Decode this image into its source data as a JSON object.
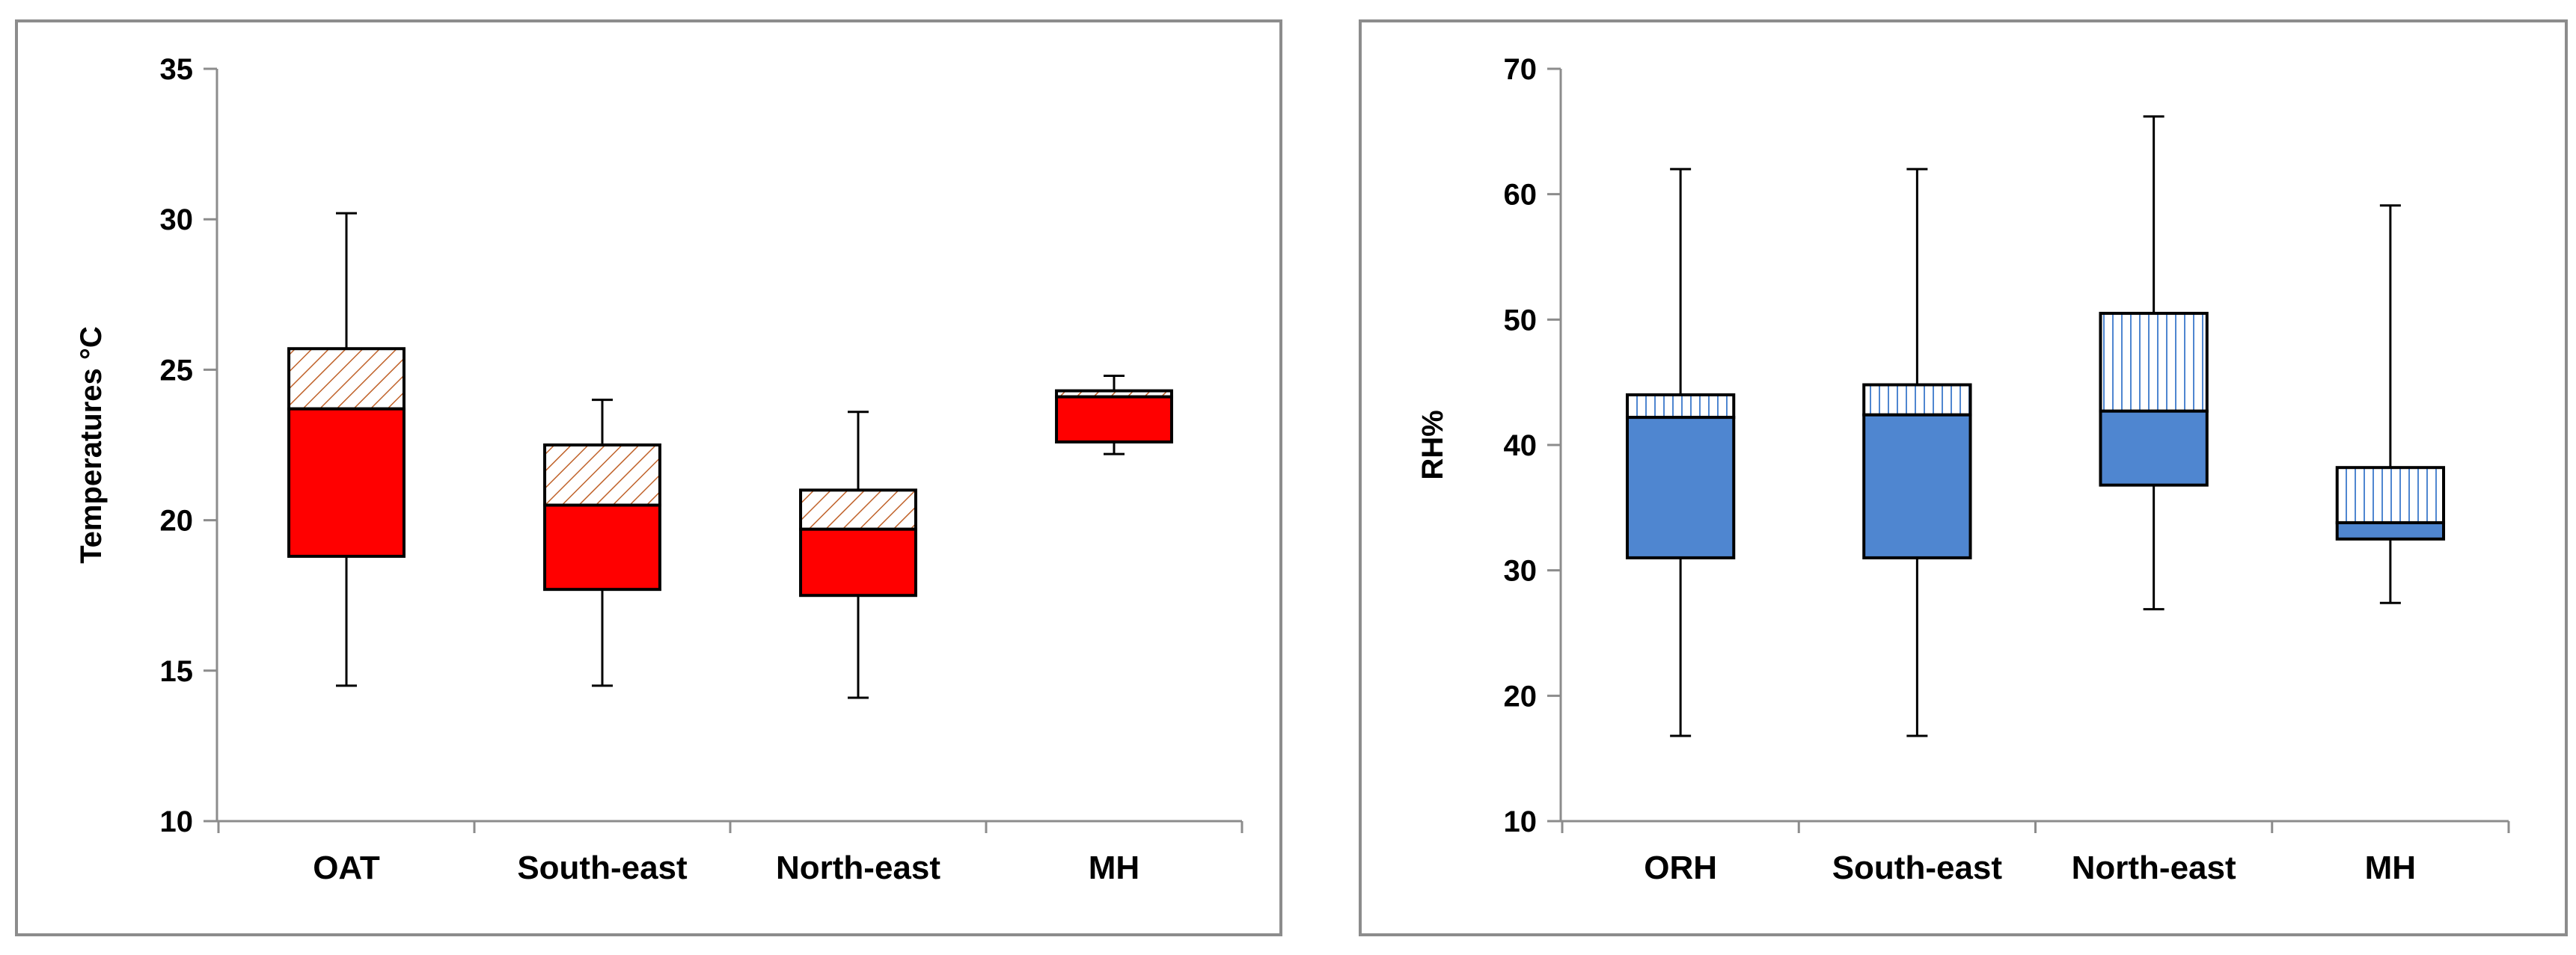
{
  "chart_data": [
    {
      "type": "box",
      "ylabel": "Temperatures °C",
      "xlabel": "",
      "ylim": [
        10,
        35
      ],
      "yticks": [
        10,
        15,
        20,
        25,
        30,
        35
      ],
      "categories": [
        "OAT",
        "South-east",
        "North-east",
        "MH"
      ],
      "boxes": [
        {
          "min": 14.5,
          "q1": 18.8,
          "median": 23.7,
          "q3": 25.7,
          "max": 30.2
        },
        {
          "min": 14.5,
          "q1": 17.7,
          "median": 20.5,
          "q3": 22.5,
          "max": 24.0
        },
        {
          "min": 14.1,
          "q1": 17.5,
          "median": 19.7,
          "q3": 21.0,
          "max": 23.6
        },
        {
          "min": 22.2,
          "q1": 22.6,
          "median": 24.1,
          "q3": 24.3,
          "max": 24.8
        }
      ],
      "colors": {
        "lower": "#ff0000",
        "upper_hatch": "#c0622a"
      }
    },
    {
      "type": "box",
      "ylabel": "RH%",
      "xlabel": "",
      "ylim": [
        10,
        70
      ],
      "yticks": [
        10,
        20,
        30,
        40,
        50,
        60,
        70
      ],
      "categories": [
        "ORH",
        "South-east",
        "North-east",
        "MH"
      ],
      "boxes": [
        {
          "min": 16.8,
          "q1": 31.0,
          "median": 42.2,
          "q3": 44.0,
          "max": 62.0
        },
        {
          "min": 16.8,
          "q1": 31.0,
          "median": 42.4,
          "q3": 44.8,
          "max": 62.0
        },
        {
          "min": 26.9,
          "q1": 36.8,
          "median": 42.7,
          "q3": 50.5,
          "max": 66.2
        },
        {
          "min": 27.4,
          "q1": 32.5,
          "median": 33.8,
          "q3": 38.2,
          "max": 59.1
        }
      ],
      "colors": {
        "lower": "#4f86d0",
        "upper_hatch": "#4f86d0"
      }
    }
  ]
}
